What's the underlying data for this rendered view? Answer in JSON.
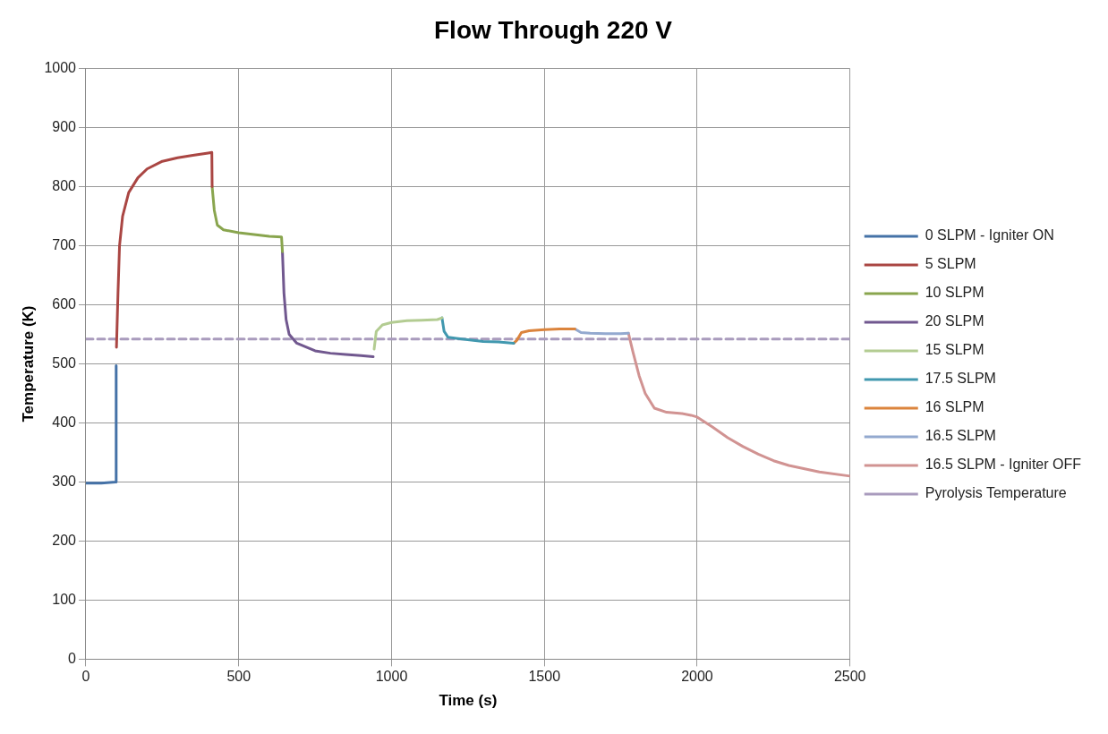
{
  "chart_data": {
    "type": "line",
    "title": "Flow Through 220 V",
    "xlabel": "Time (s)",
    "ylabel": "Temperature (K)",
    "xlim": [
      0,
      2500
    ],
    "xticks": [
      0,
      500,
      1000,
      1500,
      2000,
      2500
    ],
    "ylim": [
      0,
      1000
    ],
    "yticks": [
      0,
      100,
      200,
      300,
      400,
      500,
      600,
      700,
      800,
      900,
      1000
    ],
    "grid": true,
    "legend": "right",
    "marker": "none",
    "series": [
      {
        "name": "0 SLPM - Igniter ON",
        "color": "#4572a7",
        "x": [
          0,
          50,
          97,
          99
        ],
        "values": [
          298,
          298,
          300,
          497
        ]
      },
      {
        "name": "5 SLPM",
        "color": "#aa4643",
        "x": [
          100,
          105,
          110,
          120,
          140,
          170,
          200,
          250,
          300,
          350,
          400,
          412,
          413
        ],
        "values": [
          528,
          620,
          700,
          750,
          790,
          815,
          830,
          843,
          849,
          853,
          857,
          858,
          800
        ]
      },
      {
        "name": "10 SLPM",
        "color": "#89a54e",
        "x": [
          413,
          420,
          430,
          450,
          500,
          550,
          600,
          640,
          643
        ],
        "values": [
          800,
          760,
          735,
          727,
          722,
          719,
          716,
          715,
          690
        ]
      },
      {
        "name": "20 SLPM",
        "color": "#71588f",
        "x": [
          643,
          648,
          655,
          665,
          690,
          750,
          800,
          850,
          900,
          940
        ],
        "values": [
          690,
          620,
          575,
          550,
          535,
          522,
          518,
          516,
          514,
          512
        ]
      },
      {
        "name": "15 SLPM",
        "color": "#b3cc92",
        "x": [
          943,
          950,
          970,
          1000,
          1050,
          1100,
          1150,
          1165
        ],
        "values": [
          525,
          555,
          566,
          570,
          573,
          574,
          575,
          578
        ]
      },
      {
        "name": "17.5 SLPM",
        "color": "#4198af",
        "x": [
          1165,
          1172,
          1185,
          1230,
          1300,
          1350,
          1400
        ],
        "values": [
          578,
          555,
          545,
          542,
          538,
          537,
          535
        ]
      },
      {
        "name": "16 SLPM",
        "color": "#db843d",
        "x": [
          1400,
          1410,
          1425,
          1450,
          1500,
          1550,
          1600
        ],
        "values": [
          535,
          540,
          553,
          556,
          558,
          559,
          559
        ]
      },
      {
        "name": "16.5 SLPM",
        "color": "#93a9cf",
        "x": [
          1600,
          1620,
          1650,
          1700,
          1750,
          1775
        ],
        "values": [
          559,
          553,
          552,
          551,
          551,
          552
        ]
      },
      {
        "name": "16.5 SLPM - Igniter OFF",
        "color": "#d19392",
        "x": [
          1775,
          1790,
          1810,
          1830,
          1860,
          1900,
          1950,
          1980,
          2000,
          2050,
          2100,
          2150,
          2200,
          2250,
          2300,
          2400,
          2500
        ],
        "values": [
          552,
          520,
          480,
          450,
          425,
          418,
          416,
          413,
          410,
          393,
          375,
          360,
          347,
          336,
          328,
          317,
          310
        ]
      },
      {
        "name": "Pyrolysis Temperature",
        "color": "#a99bbd",
        "line_style": "dashed",
        "x": [
          0,
          2500
        ],
        "values": [
          542,
          542
        ]
      }
    ]
  }
}
